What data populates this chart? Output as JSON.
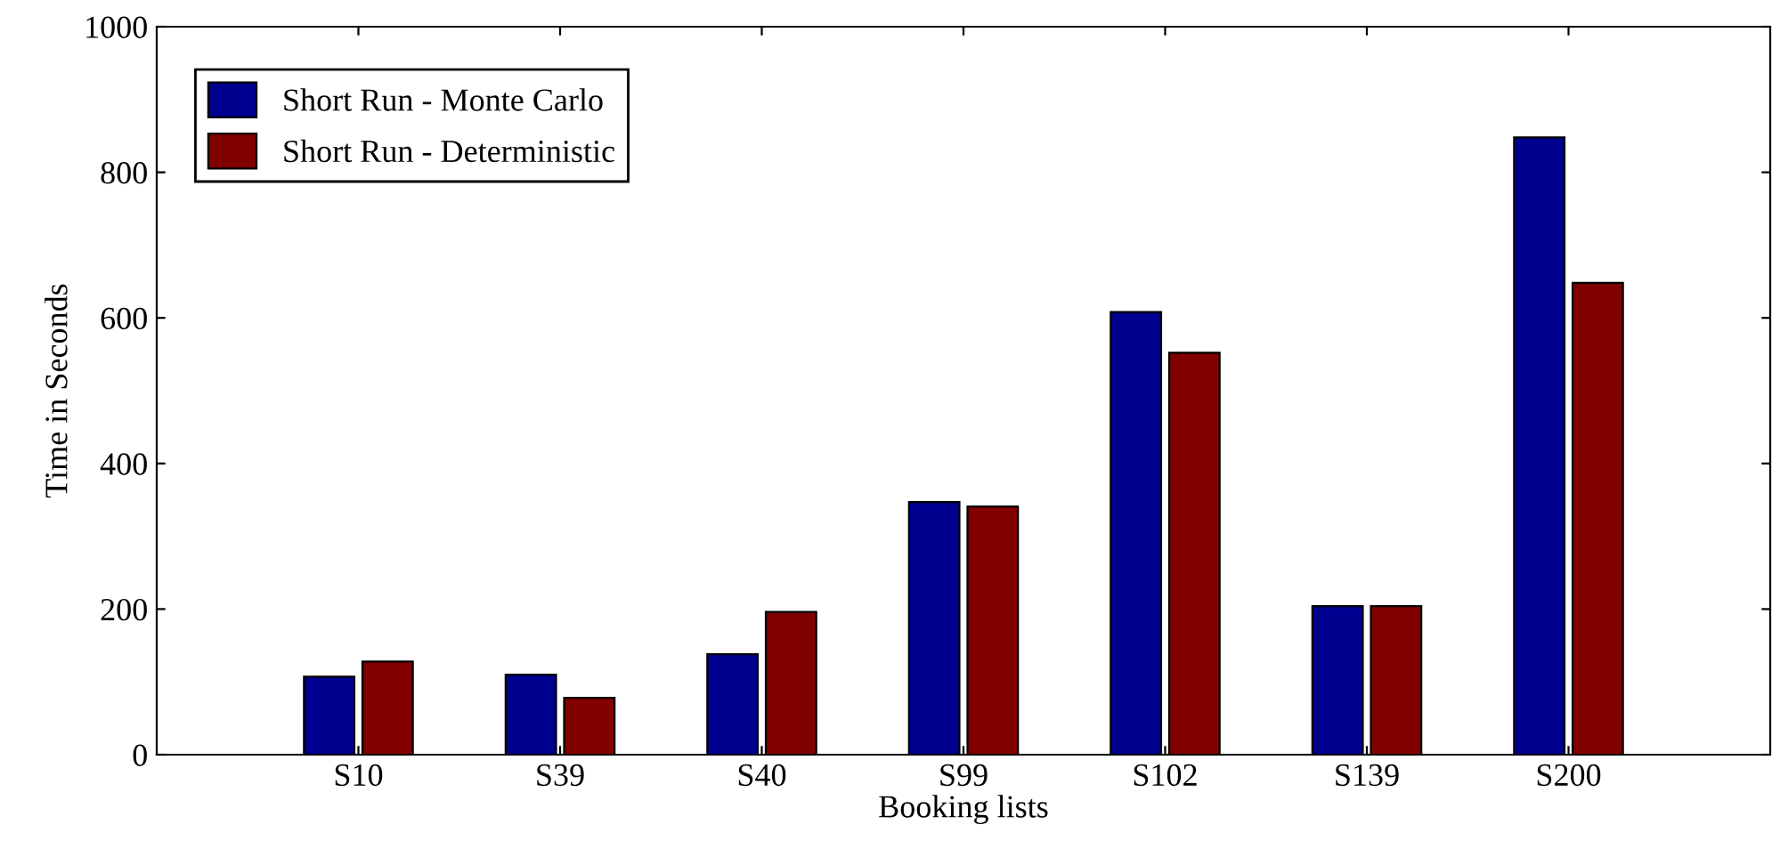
{
  "chart_data": {
    "type": "bar",
    "xlabel": "Booking lists",
    "ylabel": "Time in Seconds",
    "categories": [
      "S10",
      "S39",
      "S40",
      "S99",
      "S102",
      "S139",
      "S200"
    ],
    "series": [
      {
        "name": "Short Run - Monte Carlo",
        "color": "#00008f",
        "values": [
          107,
          110,
          138,
          347,
          608,
          204,
          848
        ]
      },
      {
        "name": "Short Run - Deterministic",
        "color": "#800000",
        "values": [
          128,
          78,
          196,
          341,
          552,
          204,
          648
        ]
      }
    ],
    "ylim": [
      0,
      1000
    ],
    "yticks": [
      0,
      200,
      400,
      600,
      800,
      1000
    ],
    "legend": "top left",
    "grid": false
  }
}
